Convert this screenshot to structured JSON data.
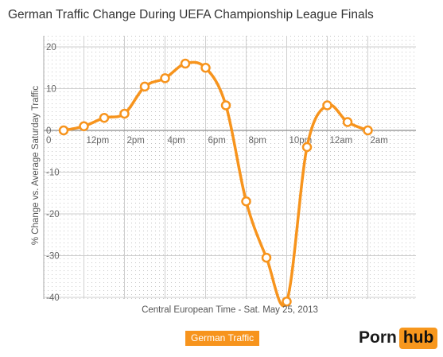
{
  "chart_data": {
    "type": "line",
    "title": "German Traffic Change During UEFA Championship League Finals",
    "xlabel": "Central European Time - Sat. May 25, 2013",
    "ylabel": "% Change vs. Average Saturday Traffic",
    "x_tick_labels": [
      "12pm",
      "2pm",
      "4pm",
      "6pm",
      "8pm",
      "10pm",
      "12am",
      "2am"
    ],
    "y_tick_labels": [
      "20",
      "10",
      "0",
      "-10",
      "-20",
      "-30",
      "-40"
    ],
    "ylim": [
      -40,
      20
    ],
    "grid": true,
    "legend": "bottom-center",
    "x": [
      "11am",
      "12pm",
      "1pm",
      "2pm",
      "3pm",
      "4pm",
      "5pm",
      "6pm",
      "7pm",
      "8pm",
      "9pm",
      "10pm",
      "11pm",
      "12am",
      "1am",
      "2am"
    ],
    "series": [
      {
        "name": "German Traffic",
        "color": "#f7941d",
        "values": [
          0,
          1,
          3,
          4,
          10.5,
          12.5,
          16,
          15,
          6,
          -17,
          -30.5,
          -41,
          -4,
          6,
          2,
          0
        ]
      }
    ]
  },
  "legend": {
    "label": "German Traffic",
    "color": "#f7941d"
  },
  "logo": {
    "part1": "Porn",
    "part2": "hub"
  }
}
